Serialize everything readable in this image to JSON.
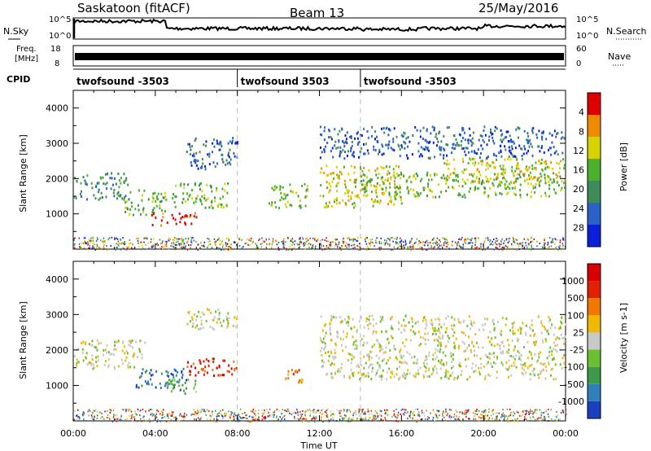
{
  "header": {
    "station": "Saskatoon (fitACF)",
    "beam": "Beam 13",
    "date": "25/May/2016"
  },
  "top_panels": {
    "nsky_label": "N.Sky",
    "nsearch_label": "N.Search",
    "freq_label_line1": "Freq.",
    "freq_label_line2": "[MHz]",
    "nave_label": "Nave",
    "cpid_label": "CPID",
    "noise_ticks_left": [
      "10^5",
      "10^0"
    ],
    "noise_ticks_right": [
      "10^5",
      "10^0"
    ],
    "freq_ticks": [
      "18",
      "8"
    ],
    "nave_ticks": [
      "60",
      "0"
    ],
    "cpid_segments": [
      {
        "label": "twofsound -3503",
        "start_hour": 0
      },
      {
        "label": "twofsound 3503",
        "start_hour": 8
      },
      {
        "label": "twofsound -3503",
        "start_hour": 14
      }
    ]
  },
  "chart_data": [
    {
      "type": "heatmap",
      "title": "",
      "ylabel": "Slant Range [km]",
      "xlabel": "",
      "xlim_hours": [
        0,
        24
      ],
      "ylim": [
        0,
        4500
      ],
      "ytick_labels": [
        "1000",
        "2000",
        "3000",
        "4000"
      ],
      "colorbar_label": "Power [dB]",
      "colorbar_ticks": [
        "4",
        "8",
        "12",
        "16",
        "20",
        "24",
        "28"
      ],
      "colorbar_colors": [
        "#0a1fd8",
        "#2a62c8",
        "#3f8a5a",
        "#4bb02a",
        "#d8d200",
        "#f08a00",
        "#e00000"
      ],
      "scatter_regions": [
        {
          "t0": 0.0,
          "t1": 2.8,
          "r0": 1400,
          "r1": 2200,
          "level": 2
        },
        {
          "t0": 2.5,
          "t1": 4.5,
          "r0": 1000,
          "r1": 1700,
          "level": 3
        },
        {
          "t0": 3.8,
          "t1": 6.0,
          "r0": 700,
          "r1": 1100,
          "level": 6
        },
        {
          "t0": 4.8,
          "t1": 7.5,
          "r0": 1200,
          "r1": 1900,
          "level": 3
        },
        {
          "t0": 5.5,
          "t1": 8.0,
          "r0": 2300,
          "r1": 3200,
          "level": 1
        },
        {
          "t0": 9.5,
          "t1": 11.5,
          "r0": 1200,
          "r1": 1900,
          "level": 3
        },
        {
          "t0": 12.0,
          "t1": 16.0,
          "r0": 1200,
          "r1": 2400,
          "level": 4
        },
        {
          "t0": 14.0,
          "t1": 24.0,
          "r0": 1500,
          "r1": 2200,
          "level": 3
        },
        {
          "t0": 18.0,
          "t1": 24.0,
          "r0": 1900,
          "r1": 2600,
          "level": 4
        },
        {
          "t0": 12.0,
          "t1": 24.0,
          "r0": 2600,
          "r1": 3500,
          "level": 1
        }
      ]
    },
    {
      "type": "heatmap",
      "title": "",
      "ylabel": "Slant Range [km]",
      "xlabel": "Time UT",
      "xlim_hours": [
        0,
        24
      ],
      "ylim": [
        0,
        4500
      ],
      "ytick_labels": [
        "1000",
        "2000",
        "3000",
        "4000"
      ],
      "xtick_labels": [
        "00:00",
        "04:00",
        "08:00",
        "12:00",
        "16:00",
        "20:00",
        "00:00"
      ],
      "colorbar_label": "Velocity [m s-1]",
      "colorbar_ticks": [
        "1000",
        "500",
        "100",
        "25",
        "-25",
        "-100",
        "-500",
        "-1000"
      ],
      "colorbar_colors": [
        "#1a3fbf",
        "#2f7fb8",
        "#3d9a4a",
        "#6ac030",
        "#c8c8c8",
        "#f0b800",
        "#f07800",
        "#e02000",
        "#d80000"
      ],
      "scatter_regions": [
        {
          "t0": 0.0,
          "t1": 3.5,
          "r0": 1500,
          "r1": 2300,
          "level": 4
        },
        {
          "t0": 3.0,
          "t1": 5.5,
          "r0": 900,
          "r1": 1500,
          "level": 1
        },
        {
          "t0": 4.5,
          "t1": 6.0,
          "r0": 800,
          "r1": 1200,
          "level": 3
        },
        {
          "t0": 5.5,
          "t1": 8.0,
          "r0": 1300,
          "r1": 1800,
          "level": 7
        },
        {
          "t0": 5.5,
          "t1": 8.0,
          "r0": 2600,
          "r1": 3200,
          "level": 4
        },
        {
          "t0": 10.3,
          "t1": 11.3,
          "r0": 1100,
          "r1": 1500,
          "level": 6
        },
        {
          "t0": 12.0,
          "t1": 24.0,
          "r0": 1200,
          "r1": 3000,
          "level": 4
        }
      ]
    }
  ]
}
